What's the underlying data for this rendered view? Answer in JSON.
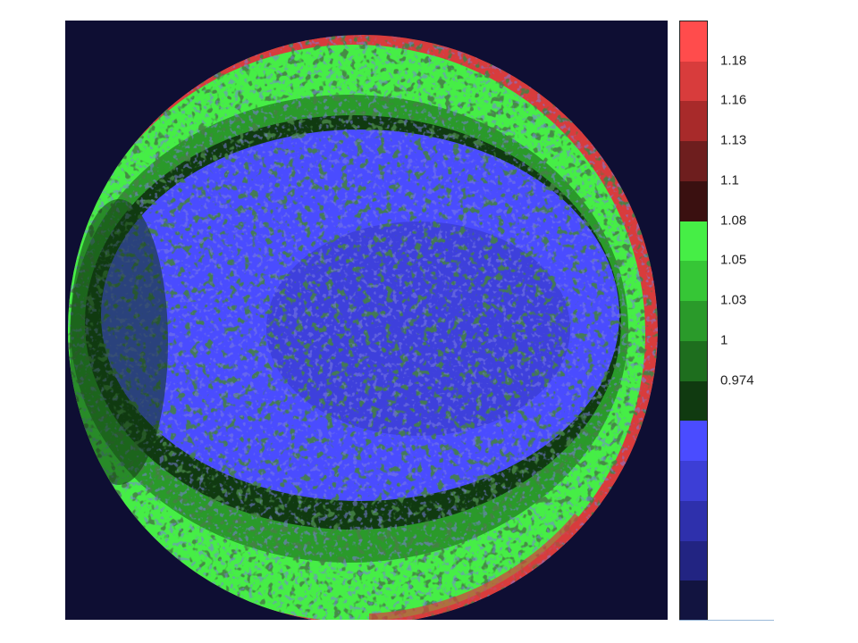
{
  "chart_data": {
    "type": "heatmap",
    "title": "",
    "xlabel": "",
    "ylabel": "",
    "colorbar": {
      "tick_labels": [
        "1.18",
        "1.16",
        "1.13",
        "1.1",
        "1.08",
        "1.05",
        "1.03",
        "1",
        "0.974"
      ],
      "levels": [
        {
          "color": "#ff4c4c"
        },
        {
          "color": "#d83c3c"
        },
        {
          "color": "#a82a2a"
        },
        {
          "color": "#6e1e1e"
        },
        {
          "color": "#3a1010"
        },
        {
          "color": "#46ee46"
        },
        {
          "color": "#36c636"
        },
        {
          "color": "#2a9a2a"
        },
        {
          "color": "#1e6e1e"
        },
        {
          "color": "#103a10"
        },
        {
          "color": "#4a4cff"
        },
        {
          "color": "#3c3ed6"
        },
        {
          "color": "#2e30ac"
        },
        {
          "color": "#222482"
        },
        {
          "color": "#121440"
        }
      ]
    },
    "map": {
      "background": "#0e0e33",
      "regions": [
        {
          "name": "edge-red",
          "color": "#d83c3c"
        },
        {
          "name": "outer-ring-green",
          "color": "#46ee46"
        },
        {
          "name": "mid-ring-green",
          "color": "#2a9a2a"
        },
        {
          "name": "inner-ring-darkgreen",
          "color": "#103a10"
        },
        {
          "name": "center-blue",
          "color": "#4a4cff"
        },
        {
          "name": "center-darkblue",
          "color": "#3c3ed6"
        }
      ]
    }
  }
}
